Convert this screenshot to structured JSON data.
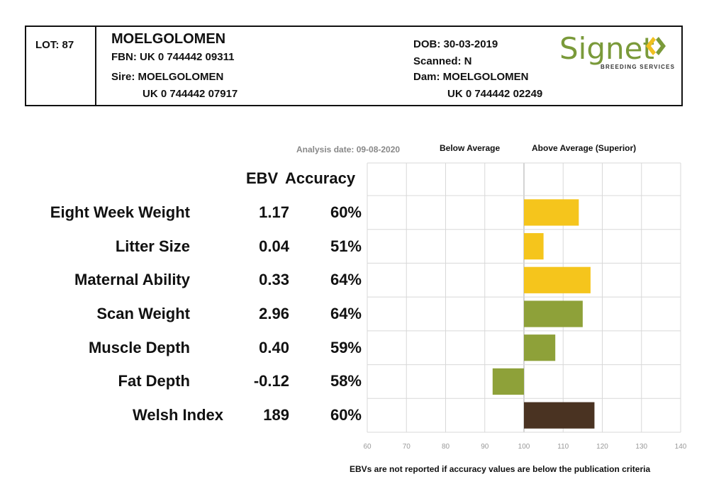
{
  "header": {
    "lot": "LOT: 87",
    "name": "MOELGOLOMEN",
    "fbn": "FBN: UK 0 744442 09311",
    "sire_label": "Sire: MOELGOLOMEN",
    "sire_id": "UK 0 744442 07917",
    "dob": "DOB: 30-03-2019",
    "scanned": "Scanned: N",
    "dam_label": "Dam: MOELGOLOMEN",
    "dam_id": "UK 0 744442 02249",
    "logo_text": "Signet",
    "logo_subtext": "BREEDING SERVICES"
  },
  "table": {
    "ebv_header": "EBV",
    "accuracy_header": "Accuracy",
    "analysis_date": "Analysis date: 09-08-2020",
    "below_label": "Below Average",
    "above_label": "Above Average (Superior)",
    "footnote": "EBVs are not reported if accuracy values are below the publication criteria"
  },
  "colors": {
    "yellow": "#f5c51c",
    "green": "#8ea139",
    "brown": "#4a3322",
    "grid": "#d8d8d8",
    "logo_green": "#7a9a3a",
    "logo_yellow": "#f0c020"
  },
  "chart_data": {
    "type": "bar",
    "orientation": "horizontal",
    "baseline": 100,
    "xlim": [
      60,
      140
    ],
    "xticks": [
      60,
      70,
      80,
      90,
      100,
      110,
      120,
      130,
      140
    ],
    "grid": true,
    "categories": [
      "Eight Week Weight",
      "Litter Size",
      "Maternal Ability",
      "Scan Weight",
      "Muscle Depth",
      "Fat Depth",
      "Welsh Index"
    ],
    "ebv": [
      "1.17",
      "0.04",
      "0.33",
      "2.96",
      "0.40",
      "-0.12",
      "189"
    ],
    "accuracy": [
      "60%",
      "51%",
      "64%",
      "64%",
      "59%",
      "58%",
      "60%"
    ],
    "values": [
      114,
      105,
      117,
      115,
      108,
      92,
      118
    ],
    "bar_colors": [
      "yellow",
      "yellow",
      "yellow",
      "green",
      "green",
      "green",
      "brown"
    ]
  }
}
